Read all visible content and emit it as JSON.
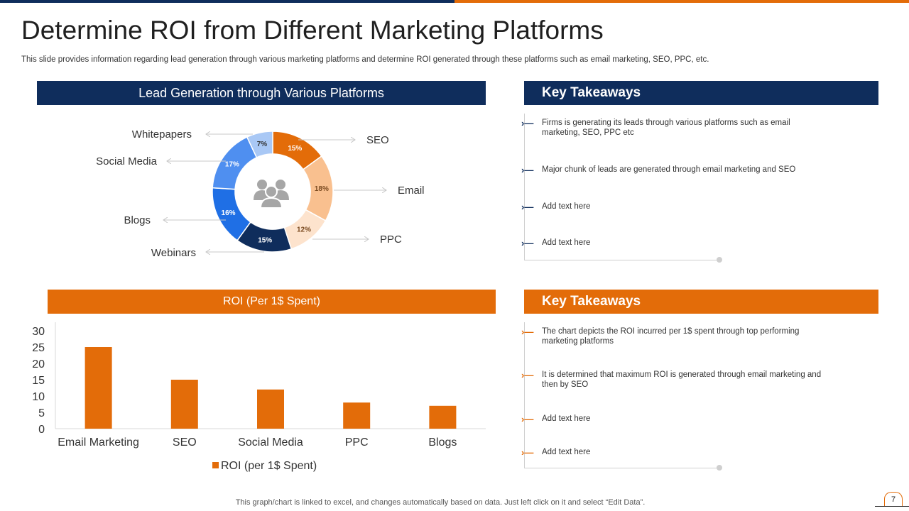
{
  "header": {
    "title": "Determine ROI from Different Marketing Platforms",
    "subtitle": "This slide provides information regarding lead generation through various marketing platforms and determine ROI generated through these platforms such as email marketing, SEO, PPC, etc."
  },
  "colors": {
    "navy": "#0f2d5c",
    "orange": "#e36c09"
  },
  "lead_panel": {
    "title": "Lead Generation through Various  Platforms",
    "center_icon": "people-group-icon"
  },
  "roi_panel": {
    "title": "ROI (Per 1$ Spent)"
  },
  "takeaways_top": {
    "title": "Key Takeaways",
    "items": [
      "Firms is generating its leads through various platforms such as email marketing, SEO, PPC etc",
      "Major chunk of leads are generated through email marketing and SEO",
      "Add text here",
      "Add text here"
    ]
  },
  "takeaways_bottom": {
    "title": "Key Takeaways",
    "items": [
      "The chart depicts the ROI incurred per 1$ spent through top performing marketing platforms",
      "It is determined that maximum ROI is generated through email marketing and then by SEO",
      "Add text here",
      "Add text here"
    ]
  },
  "footer": {
    "note": "This graph/chart is linked to excel,  and changes automatically based on data. Just left click on it and select “Edit Data”.",
    "page_number": "7"
  },
  "chart_data": [
    {
      "type": "pie",
      "donut": true,
      "categories": [
        "SEO",
        "Email",
        "PPC",
        "Webinars",
        "Blogs",
        "Social Media",
        "Whitepapers"
      ],
      "values": [
        15,
        18,
        12,
        15,
        16,
        17,
        7
      ],
      "value_labels": [
        "15%",
        "18%",
        "12%",
        "15%",
        "16%",
        "17%",
        "7%"
      ],
      "colors": [
        "#e36c09",
        "#f9c08f",
        "#fde3cd",
        "#0f2d5c",
        "#1f6fe5",
        "#4f8ff0",
        "#a9c8f5"
      ],
      "label_colors": [
        "#ffffff",
        "#7a4a20",
        "#7a4a20",
        "#ffffff",
        "#ffffff",
        "#ffffff",
        "#333333"
      ]
    },
    {
      "type": "bar",
      "categories": [
        "Email Marketing",
        "SEO",
        "Social Media",
        "PPC",
        "Blogs"
      ],
      "series": [
        {
          "name": "ROI (per 1$ Spent)",
          "values": [
            25,
            15,
            12,
            8,
            7
          ]
        }
      ],
      "yticks": [
        "0",
        "5",
        "10",
        "15",
        "20",
        "25",
        "30"
      ],
      "ylim": [
        0,
        30
      ],
      "color": "#e36c09",
      "legend": "bottom",
      "grid": false
    }
  ]
}
